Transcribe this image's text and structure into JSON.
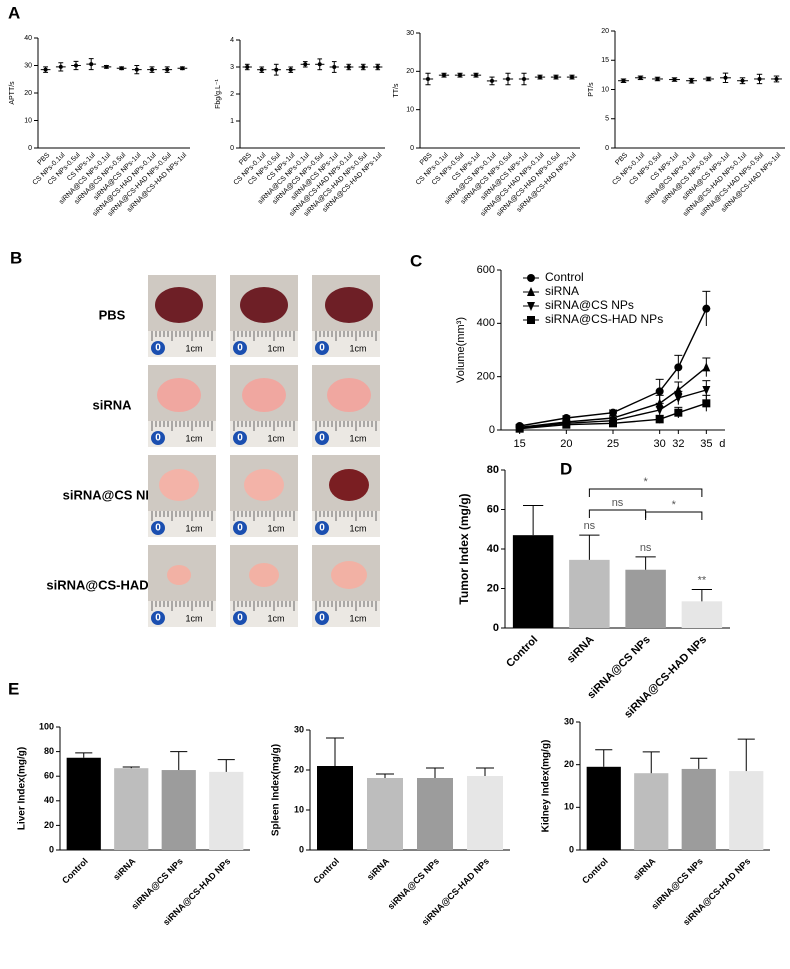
{
  "panel_labels": [
    "A",
    "B",
    "C",
    "D",
    "E"
  ],
  "photos": {
    "rows": [
      "PBS",
      "siRNA",
      "siRNA@CS NPs",
      "siRNA@CS-HAD NPs"
    ],
    "ruler_labels": [
      "0",
      "1cm"
    ]
  },
  "chart_data": [
    {
      "type": "dot",
      "ylabel": "APTT/s",
      "categories": [
        "PBS",
        "CS NPs-0.1ul",
        "CS NPs-0.5ul",
        "CS NPs-1ul",
        "siRNA@CS NPs-0.1ul",
        "siRNA@CS NPs-0.5ul",
        "siRNA@CS NPs-1ul",
        "siRNA@CS-HAD NPs-0.1ul",
        "siRNA@CS-HAD NPs-0.5ul",
        "siRNA@CS-HAD NPs-1ul"
      ],
      "values": [
        28.5,
        29.5,
        30,
        30.5,
        29.5,
        29,
        28.5,
        28.5,
        28.5,
        29
      ],
      "errors": [
        1,
        1.5,
        1.5,
        2,
        0.5,
        0.5,
        1.5,
        1,
        1,
        0.5
      ],
      "color": "#000000",
      "ylim": [
        0,
        40
      ],
      "yticks": [
        0,
        10,
        20,
        30,
        40
      ]
    },
    {
      "type": "dot",
      "ylabel": "Fbg/g.L⁻¹",
      "categories": [
        "PBS",
        "CS NPs-0.1ul",
        "CS NPs-0.5ul",
        "CS NPs-1ul",
        "siRNA@CS NPs-0.1ul",
        "siRNA@CS NPs-0.5ul",
        "siRNA@CS NPs-1ul",
        "siRNA@CS-HAD NPs-0.1ul",
        "siRNA@CS-HAD NPs-0.5ul",
        "siRNA@CS-HAD NPs-1ul"
      ],
      "values": [
        3,
        2.9,
        2.9,
        2.9,
        3.1,
        3.1,
        3,
        3,
        3,
        3
      ],
      "errors": [
        0.1,
        0.1,
        0.2,
        0.1,
        0.1,
        0.2,
        0.2,
        0.1,
        0.1,
        0.1
      ],
      "color": "#000000",
      "ylim": [
        0,
        4
      ],
      "yticks": [
        0,
        1,
        2,
        3,
        4
      ]
    },
    {
      "type": "dot",
      "ylabel": "TT/s",
      "categories": [
        "PBS",
        "CS NPs-0.1ul",
        "CS NPs-0.5ul",
        "CS NPs-1ul",
        "siRNA@CS NPs-0.1ul",
        "siRNA@CS NPs-0.5ul",
        "siRNA@CS NPs-1ul",
        "siRNA@CS-HAD NPs-0.1ul",
        "siRNA@CS-HAD NPs-0.5ul",
        "siRNA@CS-HAD NPs-1ul"
      ],
      "values": [
        18,
        19,
        19,
        19,
        17.5,
        18,
        18,
        18.5,
        18.5,
        18.5
      ],
      "errors": [
        1.5,
        0.5,
        0.5,
        0.5,
        1,
        1.5,
        1.5,
        0.5,
        0.5,
        0.5
      ],
      "color": "#000000",
      "ylim": [
        0,
        30
      ],
      "yticks": [
        0,
        10,
        20,
        30
      ]
    },
    {
      "type": "dot",
      "ylabel": "PT/s",
      "categories": [
        "PBS",
        "CS NPs-0.1ul",
        "CS NPs-0.5ul",
        "CS NPs-1ul",
        "siRNA@CS NPs-0.1ul",
        "siRNA@CS NPs-0.5ul",
        "siRNA@CS NPs-1ul",
        "siRNA@CS-HAD NPs-0.1ul",
        "siRNA@CS-HAD NPs-0.5ul",
        "siRNA@CS-HAD NPs-1ul"
      ],
      "values": [
        11.5,
        12,
        11.8,
        11.7,
        11.5,
        11.8,
        12,
        11.5,
        11.8,
        11.8
      ],
      "errors": [
        0.3,
        0.3,
        0.3,
        0.3,
        0.4,
        0.3,
        0.8,
        0.5,
        0.8,
        0.5
      ],
      "color": "#000000",
      "ylim": [
        0,
        20
      ],
      "yticks": [
        0,
        5,
        10,
        15,
        20
      ]
    },
    {
      "type": "line",
      "ylabel": "Volume(mm³)",
      "xlabel": "d",
      "x": [
        15,
        20,
        25,
        30,
        32,
        35
      ],
      "xlim": [
        13,
        37
      ],
      "xticks": [
        15,
        20,
        25,
        30,
        32,
        35
      ],
      "ylim": [
        0,
        600
      ],
      "yticks": [
        0,
        200,
        400,
        600
      ],
      "legend": "upper left",
      "series": [
        {
          "name": "Control",
          "color": "#000000",
          "marker": "circle",
          "values": [
            15,
            45,
            65,
            145,
            235,
            455
          ],
          "errors": [
            5,
            8,
            10,
            45,
            45,
            65
          ]
        },
        {
          "name": "siRNA",
          "color": "#000000",
          "marker": "triangle-up",
          "values": [
            10,
            30,
            45,
            100,
            150,
            235
          ],
          "errors": [
            4,
            6,
            8,
            30,
            30,
            35
          ]
        },
        {
          "name": "siRNA@CS NPs",
          "color": "#000000",
          "marker": "triangle-down",
          "values": [
            8,
            25,
            35,
            75,
            120,
            150
          ],
          "errors": [
            3,
            5,
            8,
            25,
            25,
            35
          ]
        },
        {
          "name": "siRNA@CS-HAD NPs",
          "color": "#000000",
          "marker": "square",
          "values": [
            5,
            20,
            25,
            40,
            65,
            100
          ],
          "errors": [
            3,
            5,
            6,
            15,
            20,
            30
          ]
        }
      ]
    },
    {
      "type": "bar",
      "ylabel": "Tumor Index (mg/g)",
      "categories": [
        "Control",
        "siRNA",
        "siRNA@CS NPs",
        "siRNA@CS-HAD NPs"
      ],
      "values": [
        47,
        34.5,
        29.5,
        13.5
      ],
      "errors": [
        15,
        12.5,
        6.5,
        6
      ],
      "colors": [
        "#000000",
        "#bdbdbd",
        "#9c9c9c",
        "#e6e6e6"
      ],
      "ylim": [
        0,
        80
      ],
      "yticks": [
        0,
        20,
        40,
        60,
        80
      ],
      "annotations": [
        "ns",
        "ns",
        "**",
        "*",
        "ns",
        "*"
      ]
    },
    {
      "type": "bar",
      "ylabel": "Liver Index(mg/g)",
      "categories": [
        "Control",
        "siRNA",
        "siRNA@CS NPs",
        "siRNA@CS-HAD NPs"
      ],
      "values": [
        75,
        66.5,
        65,
        63.5
      ],
      "errors": [
        4,
        1,
        15,
        10
      ],
      "colors": [
        "#000000",
        "#bdbdbd",
        "#9c9c9c",
        "#e6e6e6"
      ],
      "ylim": [
        0,
        100
      ],
      "yticks": [
        0,
        20,
        40,
        60,
        80,
        100
      ]
    },
    {
      "type": "bar",
      "ylabel": "Spleen Index(mg/g)",
      "categories": [
        "Control",
        "siRNA",
        "siRNA@CS NPs",
        "siRNA@CS-HAD NPs"
      ],
      "values": [
        21,
        18,
        18,
        18.5
      ],
      "errors": [
        7,
        1,
        2.5,
        2
      ],
      "colors": [
        "#000000",
        "#bdbdbd",
        "#9c9c9c",
        "#e6e6e6"
      ],
      "ylim": [
        0,
        30
      ],
      "yticks": [
        0,
        10,
        20,
        30
      ]
    },
    {
      "type": "bar",
      "ylabel": "Kidney Index(mg/g)",
      "categories": [
        "Control",
        "siRNA",
        "siRNA@CS NPs",
        "siRNA@CS-HAD NPs"
      ],
      "values": [
        19.5,
        18,
        19,
        18.5
      ],
      "errors": [
        4,
        5,
        2.5,
        7.5
      ],
      "colors": [
        "#000000",
        "#bdbdbd",
        "#9c9c9c",
        "#e6e6e6"
      ],
      "ylim": [
        0,
        30
      ],
      "yticks": [
        0,
        10,
        20,
        30
      ]
    }
  ]
}
